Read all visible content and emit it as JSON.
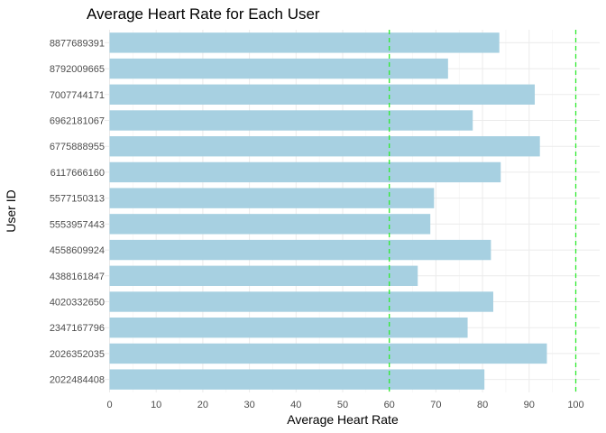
{
  "chart_data": {
    "type": "bar",
    "orientation": "horizontal",
    "title": "Average Heart Rate for Each User",
    "xlabel": "Average Heart Rate",
    "ylabel": "User ID",
    "xlim": [
      0,
      100
    ],
    "x_ticks": [
      0,
      10,
      20,
      30,
      40,
      50,
      60,
      70,
      80,
      90,
      100
    ],
    "grid": true,
    "bar_color": "#A7D0E1",
    "reference_lines": [
      {
        "value": 60,
        "color": "#2EEB2E",
        "style": "dashed"
      },
      {
        "value": 100,
        "color": "#2EEB2E",
        "style": "dashed"
      }
    ],
    "categories": [
      "8877689391",
      "8792009665",
      "7007744171",
      "6962181067",
      "6775888955",
      "6117666160",
      "5577150313",
      "5553957443",
      "4558609924",
      "4388161847",
      "4020332650",
      "2347167796",
      "2026352035",
      "2022484408"
    ],
    "values": [
      83.6,
      72.6,
      91.2,
      77.9,
      92.3,
      83.9,
      69.6,
      68.8,
      81.8,
      66.1,
      82.3,
      76.8,
      93.8,
      80.4
    ]
  }
}
